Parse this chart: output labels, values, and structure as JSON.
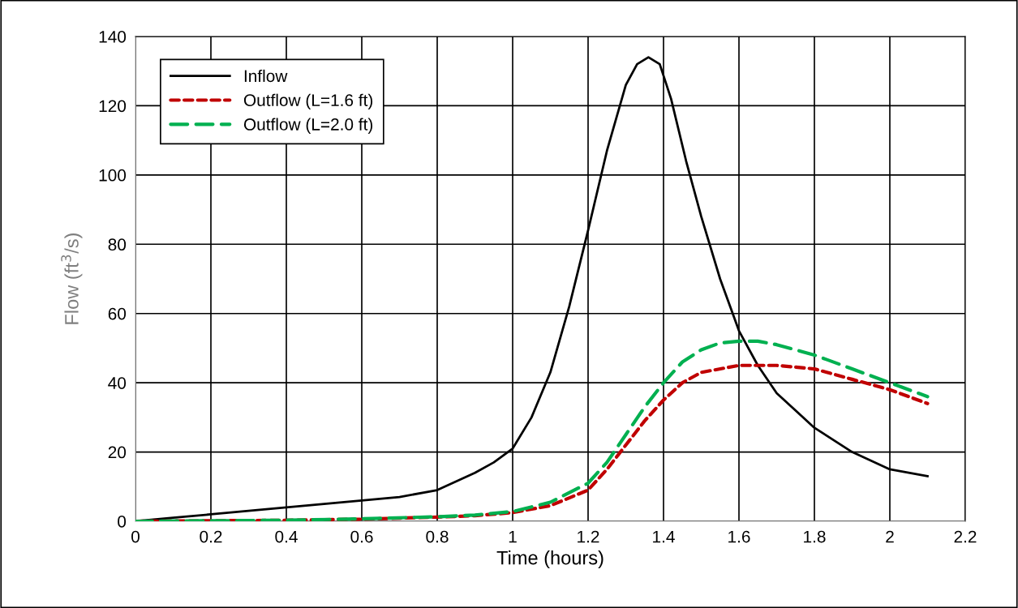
{
  "chart_data": {
    "type": "line",
    "xlabel": "Time (hours)",
    "ylabel": "Flow (ft$^{3}$/s)",
    "xlim": [
      0,
      2.2
    ],
    "xticks": [
      0,
      0.2,
      0.4,
      0.6,
      0.8,
      1,
      1.2,
      1.4,
      1.6,
      1.8,
      2,
      2.2
    ],
    "ylim": [
      0,
      140
    ],
    "yticks": [
      0,
      20,
      40,
      60,
      80,
      100,
      120,
      140
    ],
    "grid": true,
    "legend": "top left",
    "series": [
      {
        "name": "Inflow",
        "color": "#000000",
        "line_style": "solid",
        "x": [
          0,
          0.1,
          0.2,
          0.4,
          0.6,
          0.7,
          0.8,
          0.9,
          0.95,
          1.0,
          1.05,
          1.1,
          1.15,
          1.2,
          1.25,
          1.3,
          1.33,
          1.36,
          1.39,
          1.42,
          1.46,
          1.5,
          1.55,
          1.6,
          1.65,
          1.7,
          1.8,
          1.9,
          2.0,
          2.1
        ],
        "values": [
          0,
          1,
          2,
          4,
          6,
          7,
          9,
          14,
          17,
          21,
          30,
          43,
          62,
          84,
          107,
          126,
          132,
          134,
          132,
          122,
          104,
          88,
          70,
          55,
          45,
          37,
          27,
          20,
          15,
          13
        ]
      },
      {
        "name": "Outflow (L=1.6 ft)",
        "color": "#c00000",
        "line_style": "dotted",
        "x": [
          0,
          0.4,
          0.6,
          0.8,
          0.9,
          1.0,
          1.1,
          1.2,
          1.25,
          1.3,
          1.35,
          1.4,
          1.45,
          1.5,
          1.6,
          1.7,
          1.8,
          1.9,
          2.0,
          2.1
        ],
        "values": [
          0,
          0.3,
          0.6,
          1.2,
          1.6,
          2.5,
          4.5,
          9,
          15,
          22,
          29,
          35,
          40,
          43,
          45,
          45,
          44,
          41,
          38,
          34
        ]
      },
      {
        "name": "Outflow (L=2.0 ft)",
        "color": "#00b050",
        "line_style": "dashed",
        "x": [
          0,
          0.4,
          0.6,
          0.8,
          0.9,
          1.0,
          1.1,
          1.2,
          1.25,
          1.3,
          1.35,
          1.4,
          1.45,
          1.5,
          1.55,
          1.6,
          1.65,
          1.7,
          1.8,
          1.9,
          2.0,
          2.1
        ],
        "values": [
          0,
          0.3,
          0.7,
          1.3,
          1.8,
          2.8,
          5.5,
          11,
          17,
          25,
          33,
          40,
          46,
          49.5,
          51.5,
          52,
          52,
          51,
          48,
          44,
          40,
          36
        ]
      }
    ]
  }
}
